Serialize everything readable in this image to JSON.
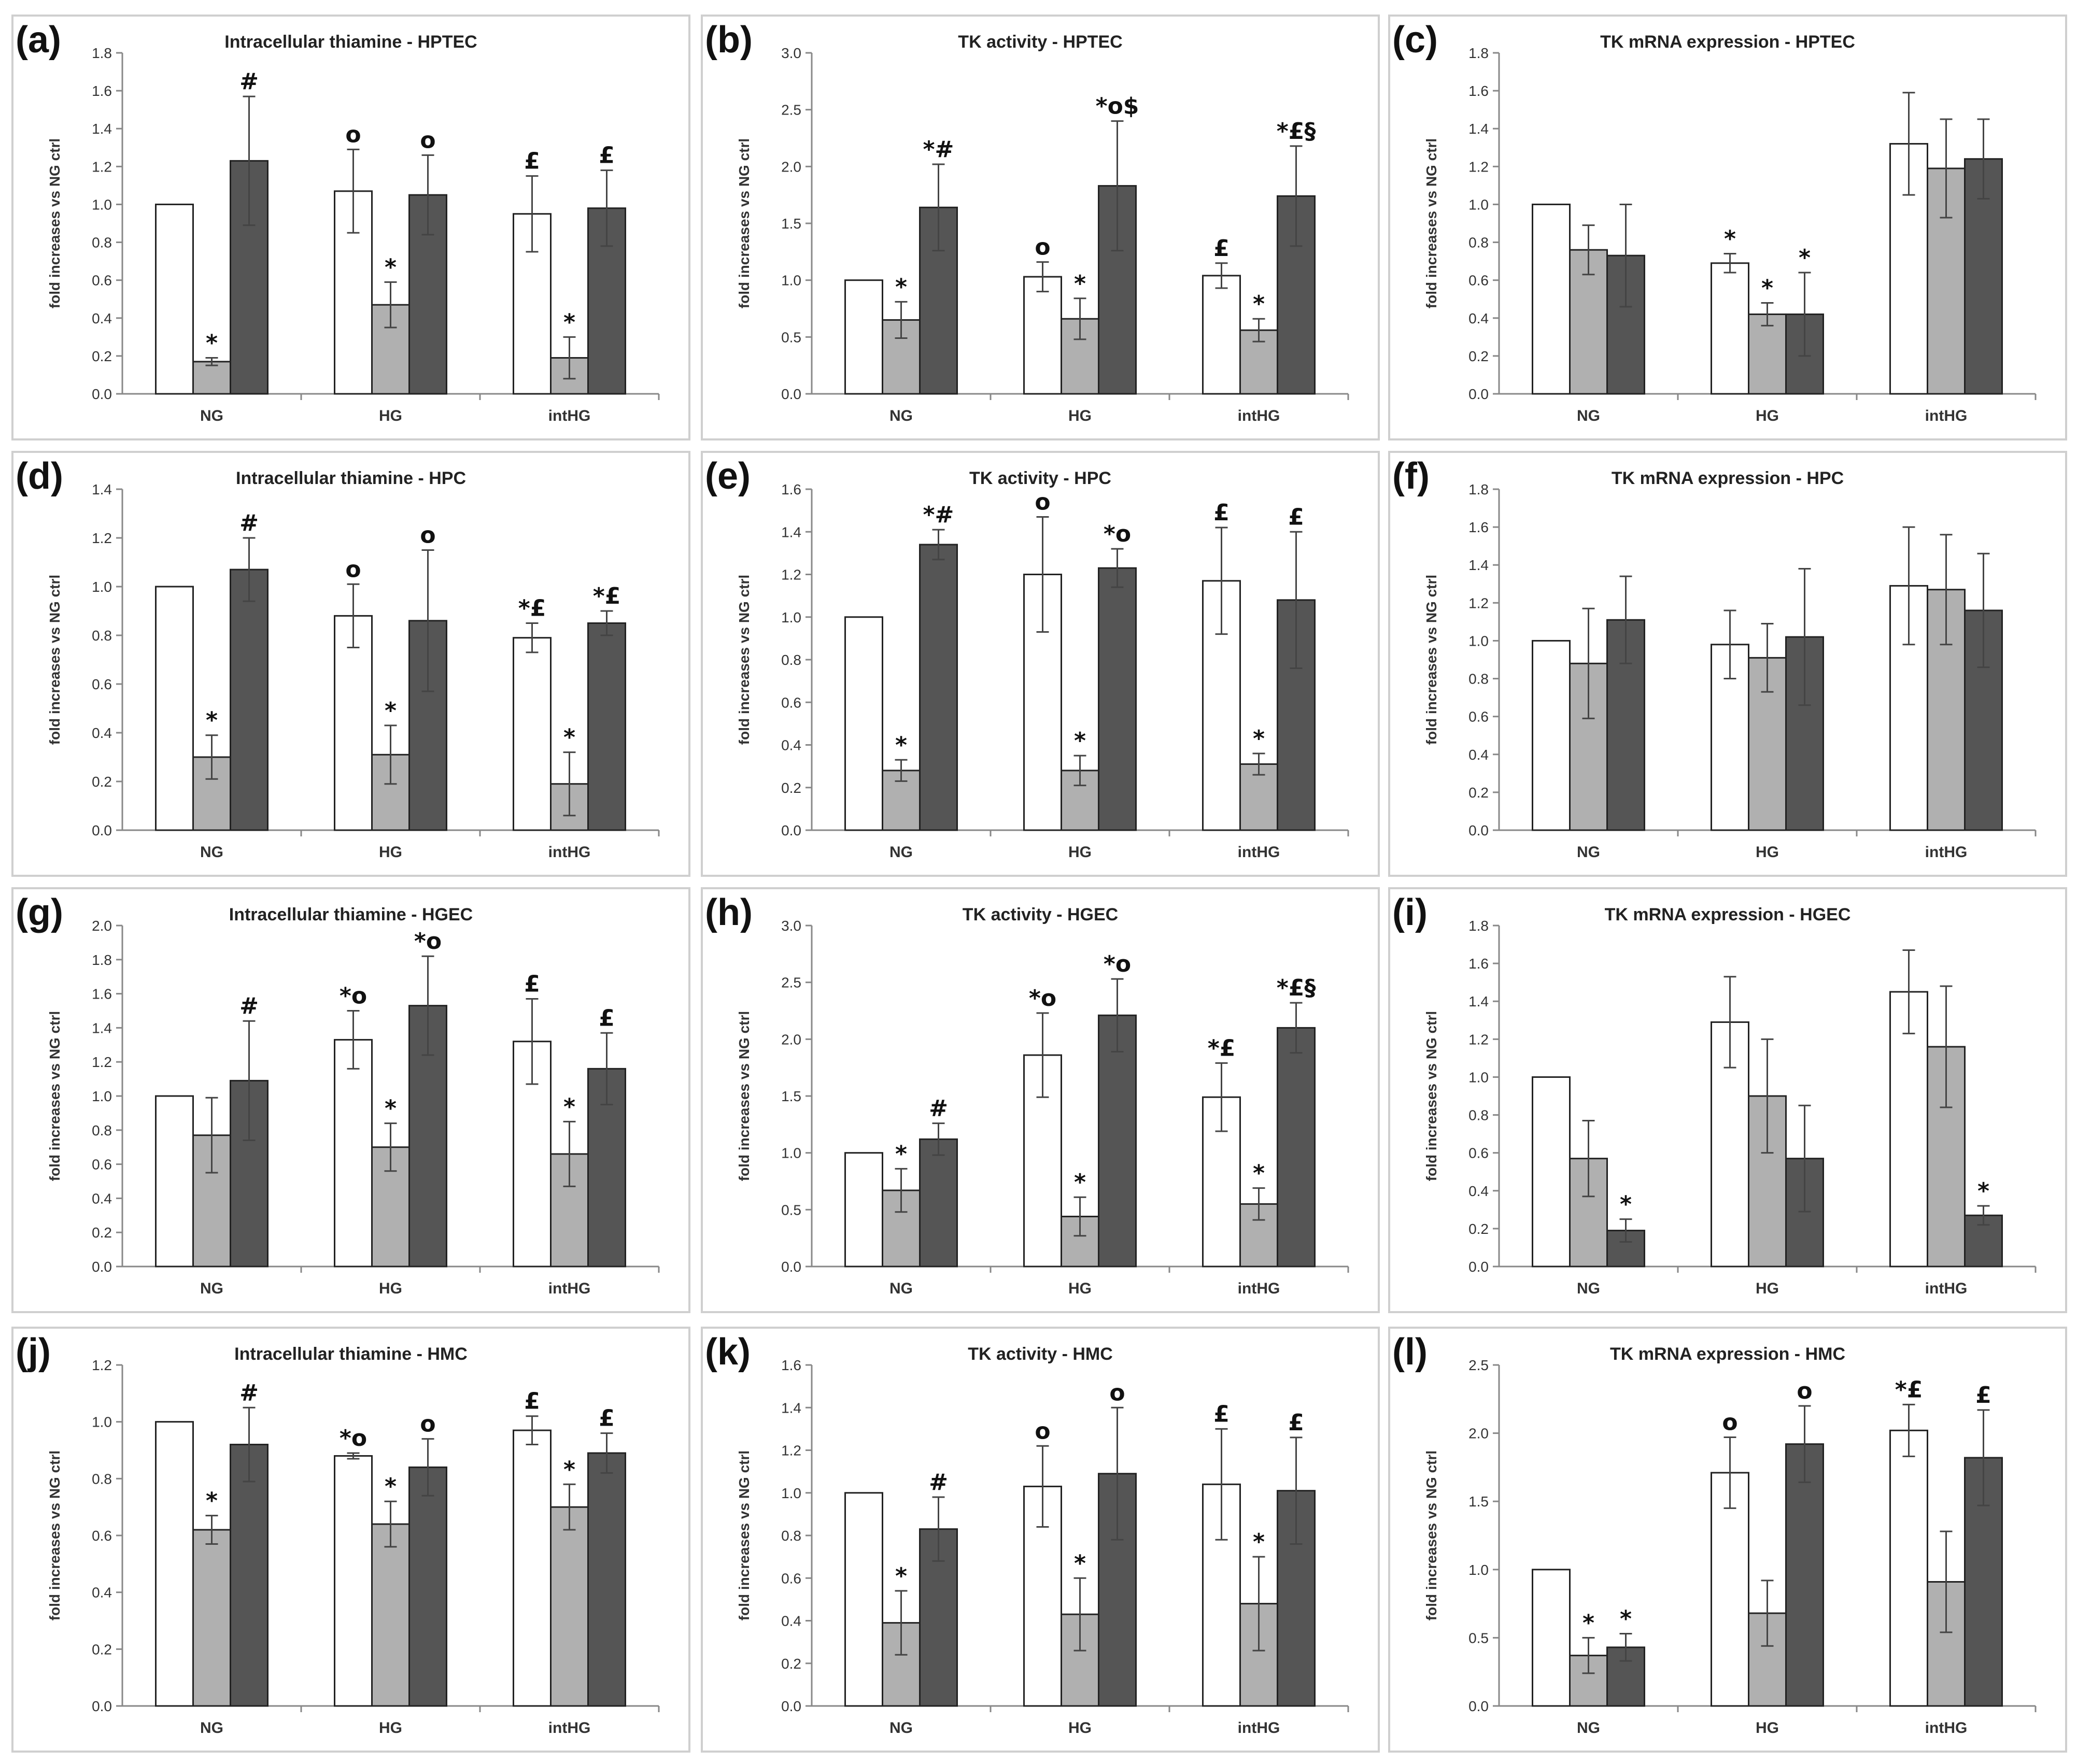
{
  "colors": {
    "white": "#ffffff",
    "gray": "#b0b0b0",
    "dark": "#555555",
    "axis": "#888888",
    "text": "#333333"
  },
  "chart_data": [
    {
      "id": "a",
      "label": "(a)",
      "type": "bar",
      "title": "Intracellular thiamine - HPTEC",
      "ylabel": "fold increases vs NG ctrl",
      "categories": [
        "NG",
        "HG",
        "intHG"
      ],
      "ylim": [
        0,
        1.8
      ],
      "yticks": [
        "0.0",
        "0.2",
        "0.4",
        "0.6",
        "0.8",
        "1.0",
        "1.2",
        "1.4",
        "1.6",
        "1.8"
      ],
      "values": [
        [
          1.0,
          0.17,
          1.23
        ],
        [
          1.07,
          0.47,
          1.05
        ],
        [
          0.95,
          0.19,
          0.98
        ]
      ],
      "errors": [
        [
          0,
          0.02,
          0.34
        ],
        [
          0.22,
          0.12,
          0.21
        ],
        [
          0.2,
          0.11,
          0.2
        ]
      ],
      "annotations": [
        [
          "",
          "*",
          "#"
        ],
        [
          "o",
          "*",
          "o"
        ],
        [
          "£",
          "*",
          "£"
        ]
      ]
    },
    {
      "id": "b",
      "label": "(b)",
      "type": "bar",
      "title": "TK activity - HPTEC",
      "ylabel": "fold increases vs NG ctrl",
      "categories": [
        "NG",
        "HG",
        "intHG"
      ],
      "ylim": [
        0,
        3.0
      ],
      "yticks": [
        "0.0",
        "0.5",
        "1.0",
        "1.5",
        "2.0",
        "2.5",
        "3.0"
      ],
      "values": [
        [
          1.0,
          0.65,
          1.64
        ],
        [
          1.03,
          0.66,
          1.83
        ],
        [
          1.04,
          0.56,
          1.74
        ]
      ],
      "errors": [
        [
          0,
          0.16,
          0.38
        ],
        [
          0.13,
          0.18,
          0.57
        ],
        [
          0.11,
          0.1,
          0.44
        ]
      ],
      "annotations": [
        [
          "",
          "*",
          "*#"
        ],
        [
          "o",
          "*",
          "*o$"
        ],
        [
          "£",
          "*",
          "*£§"
        ]
      ]
    },
    {
      "id": "c",
      "label": "(c)",
      "type": "bar",
      "title": "TK mRNA expression - HPTEC",
      "ylabel": "fold increases vs NG ctrl",
      "categories": [
        "NG",
        "HG",
        "intHG"
      ],
      "ylim": [
        0,
        1.8
      ],
      "yticks": [
        "0.0",
        "0.2",
        "0.4",
        "0.6",
        "0.8",
        "1.0",
        "1.2",
        "1.4",
        "1.6",
        "1.8"
      ],
      "values": [
        [
          1.0,
          0.76,
          0.73
        ],
        [
          0.69,
          0.42,
          0.42
        ],
        [
          1.32,
          1.19,
          1.24
        ]
      ],
      "errors": [
        [
          0,
          0.13,
          0.27
        ],
        [
          0.05,
          0.06,
          0.22
        ],
        [
          0.27,
          0.26,
          0.21
        ]
      ],
      "annotations": [
        [
          "",
          "",
          ""
        ],
        [
          "*",
          "*",
          "*"
        ],
        [
          "",
          "",
          ""
        ]
      ]
    },
    {
      "id": "d",
      "label": "(d)",
      "type": "bar",
      "title": "Intracellular thiamine - HPC",
      "ylabel": "fold increases vs NG ctrl",
      "categories": [
        "NG",
        "HG",
        "intHG"
      ],
      "ylim": [
        0,
        1.4
      ],
      "yticks": [
        "0.0",
        "0.2",
        "0.4",
        "0.6",
        "0.8",
        "1.0",
        "1.2",
        "1.4"
      ],
      "values": [
        [
          1.0,
          0.3,
          1.07
        ],
        [
          0.88,
          0.31,
          0.86
        ],
        [
          0.79,
          0.19,
          0.85
        ]
      ],
      "errors": [
        [
          0,
          0.09,
          0.13
        ],
        [
          0.13,
          0.12,
          0.29
        ],
        [
          0.06,
          0.13,
          0.05
        ]
      ],
      "annotations": [
        [
          "",
          "*",
          "#"
        ],
        [
          "o",
          "*",
          "o"
        ],
        [
          "*£",
          "*",
          "*£"
        ]
      ]
    },
    {
      "id": "e",
      "label": "(e)",
      "type": "bar",
      "title": "TK activity - HPC",
      "ylabel": "fold increases vs NG ctrl",
      "categories": [
        "NG",
        "HG",
        "intHG"
      ],
      "ylim": [
        0,
        1.6
      ],
      "yticks": [
        "0.0",
        "0.2",
        "0.4",
        "0.6",
        "0.8",
        "1.0",
        "1.2",
        "1.4",
        "1.6"
      ],
      "values": [
        [
          1.0,
          0.28,
          1.34
        ],
        [
          1.2,
          0.28,
          1.23
        ],
        [
          1.17,
          0.31,
          1.08
        ]
      ],
      "errors": [
        [
          0,
          0.05,
          0.07
        ],
        [
          0.27,
          0.07,
          0.09
        ],
        [
          0.25,
          0.05,
          0.32
        ]
      ],
      "annotations": [
        [
          "",
          "*",
          "*#"
        ],
        [
          "o",
          "*",
          "*o"
        ],
        [
          "£",
          "*",
          "£"
        ]
      ]
    },
    {
      "id": "f",
      "label": "(f)",
      "type": "bar",
      "title": "TK mRNA expression - HPC",
      "ylabel": "fold increases vs NG ctrl",
      "categories": [
        "NG",
        "HG",
        "intHG"
      ],
      "ylim": [
        0,
        1.8
      ],
      "yticks": [
        "0.0",
        "0.2",
        "0.4",
        "0.6",
        "0.8",
        "1.0",
        "1.2",
        "1.4",
        "1.6",
        "1.8"
      ],
      "values": [
        [
          1.0,
          0.88,
          1.11
        ],
        [
          0.98,
          0.91,
          1.02
        ],
        [
          1.29,
          1.27,
          1.16
        ]
      ],
      "errors": [
        [
          0,
          0.29,
          0.23
        ],
        [
          0.18,
          0.18,
          0.36
        ],
        [
          0.31,
          0.29,
          0.3
        ]
      ],
      "annotations": [
        [
          "",
          "",
          ""
        ],
        [
          "",
          "",
          ""
        ],
        [
          "",
          "",
          ""
        ]
      ]
    },
    {
      "id": "g",
      "label": "(g)",
      "type": "bar",
      "title": "Intracellular thiamine - HGEC",
      "ylabel": "fold increases vs NG ctrl",
      "categories": [
        "NG",
        "HG",
        "intHG"
      ],
      "ylim": [
        0,
        2.0
      ],
      "yticks": [
        "0.0",
        "0.2",
        "0.4",
        "0.6",
        "0.8",
        "1.0",
        "1.2",
        "1.4",
        "1.6",
        "1.8",
        "2.0"
      ],
      "values": [
        [
          1.0,
          0.77,
          1.09
        ],
        [
          1.33,
          0.7,
          1.53
        ],
        [
          1.32,
          0.66,
          1.16
        ]
      ],
      "errors": [
        [
          0,
          0.22,
          0.35
        ],
        [
          0.17,
          0.14,
          0.29
        ],
        [
          0.25,
          0.19,
          0.21
        ]
      ],
      "annotations": [
        [
          "",
          "",
          "#"
        ],
        [
          "*o",
          "*",
          "*o"
        ],
        [
          "£",
          "*",
          "£"
        ]
      ]
    },
    {
      "id": "h",
      "label": "(h)",
      "type": "bar",
      "title": "TK activity - HGEC",
      "ylabel": "fold increases vs NG ctrl",
      "categories": [
        "NG",
        "HG",
        "intHG"
      ],
      "ylim": [
        0,
        3.0
      ],
      "yticks": [
        "0.0",
        "0.5",
        "1.0",
        "1.5",
        "2.0",
        "2.5",
        "3.0"
      ],
      "values": [
        [
          1.0,
          0.67,
          1.12
        ],
        [
          1.86,
          0.44,
          2.21
        ],
        [
          1.49,
          0.55,
          2.1
        ]
      ],
      "errors": [
        [
          0,
          0.19,
          0.14
        ],
        [
          0.37,
          0.17,
          0.32
        ],
        [
          0.3,
          0.14,
          0.22
        ]
      ],
      "annotations": [
        [
          "",
          "*",
          "#"
        ],
        [
          "*o",
          "*",
          "*o"
        ],
        [
          "*£",
          "*",
          "*£§"
        ]
      ]
    },
    {
      "id": "i",
      "label": "(i)",
      "type": "bar",
      "title": "TK mRNA expression - HGEC",
      "ylabel": "fold increases vs NG ctrl",
      "categories": [
        "NG",
        "HG",
        "intHG"
      ],
      "ylim": [
        0,
        1.8
      ],
      "yticks": [
        "0.0",
        "0.2",
        "0.4",
        "0.6",
        "0.8",
        "1.0",
        "1.2",
        "1.4",
        "1.6",
        "1.8"
      ],
      "values": [
        [
          1.0,
          0.57,
          0.19
        ],
        [
          1.29,
          0.9,
          0.57
        ],
        [
          1.45,
          1.16,
          0.27
        ]
      ],
      "errors": [
        [
          0,
          0.2,
          0.06
        ],
        [
          0.24,
          0.3,
          0.28
        ],
        [
          0.22,
          0.32,
          0.05
        ]
      ],
      "annotations": [
        [
          "",
          "",
          "*"
        ],
        [
          "",
          "",
          ""
        ],
        [
          "",
          "",
          "*"
        ]
      ]
    },
    {
      "id": "j",
      "label": "(j)",
      "type": "bar",
      "title": "Intracellular thiamine - HMC",
      "ylabel": "fold increases vs NG ctrl",
      "categories": [
        "NG",
        "HG",
        "intHG"
      ],
      "ylim": [
        0,
        1.2
      ],
      "yticks": [
        "0.0",
        "0.2",
        "0.4",
        "0.6",
        "0.8",
        "1.0",
        "1.2"
      ],
      "values": [
        [
          1.0,
          0.62,
          0.92
        ],
        [
          0.88,
          0.64,
          0.84
        ],
        [
          0.97,
          0.7,
          0.89
        ]
      ],
      "errors": [
        [
          0,
          0.05,
          0.13
        ],
        [
          0.01,
          0.08,
          0.1
        ],
        [
          0.05,
          0.08,
          0.07
        ]
      ],
      "annotations": [
        [
          "",
          "*",
          "#"
        ],
        [
          "*o",
          "*",
          "o"
        ],
        [
          "£",
          "*",
          "£"
        ]
      ]
    },
    {
      "id": "k",
      "label": "(k)",
      "type": "bar",
      "title": "TK activity - HMC",
      "ylabel": "fold increases vs NG ctrl",
      "categories": [
        "NG",
        "HG",
        "intHG"
      ],
      "ylim": [
        0,
        1.6
      ],
      "yticks": [
        "0.0",
        "0.2",
        "0.4",
        "0.6",
        "0.8",
        "1.0",
        "1.2",
        "1.4",
        "1.6"
      ],
      "values": [
        [
          1.0,
          0.39,
          0.83
        ],
        [
          1.03,
          0.43,
          1.09
        ],
        [
          1.04,
          0.48,
          1.01
        ]
      ],
      "errors": [
        [
          0,
          0.15,
          0.15
        ],
        [
          0.19,
          0.17,
          0.31
        ],
        [
          0.26,
          0.22,
          0.25
        ]
      ],
      "annotations": [
        [
          "",
          "*",
          "#"
        ],
        [
          "o",
          "*",
          "o"
        ],
        [
          "£",
          "*",
          "£"
        ]
      ]
    },
    {
      "id": "l",
      "label": "(l)",
      "type": "bar",
      "title": "TK mRNA expression - HMC",
      "ylabel": "fold increases vs NG ctrl",
      "categories": [
        "NG",
        "HG",
        "intHG"
      ],
      "ylim": [
        0,
        2.5
      ],
      "yticks": [
        "0.0",
        "0.5",
        "1.0",
        "1.5",
        "2.0",
        "2.5"
      ],
      "values": [
        [
          1.0,
          0.37,
          0.43
        ],
        [
          1.71,
          0.68,
          1.92
        ],
        [
          2.02,
          0.91,
          1.82
        ]
      ],
      "errors": [
        [
          0,
          0.13,
          0.1
        ],
        [
          0.26,
          0.24,
          0.28
        ],
        [
          0.19,
          0.37,
          0.35
        ]
      ],
      "annotations": [
        [
          "",
          "*",
          "*"
        ],
        [
          "o",
          "",
          "o"
        ],
        [
          "*£",
          "",
          "£"
        ]
      ]
    }
  ]
}
